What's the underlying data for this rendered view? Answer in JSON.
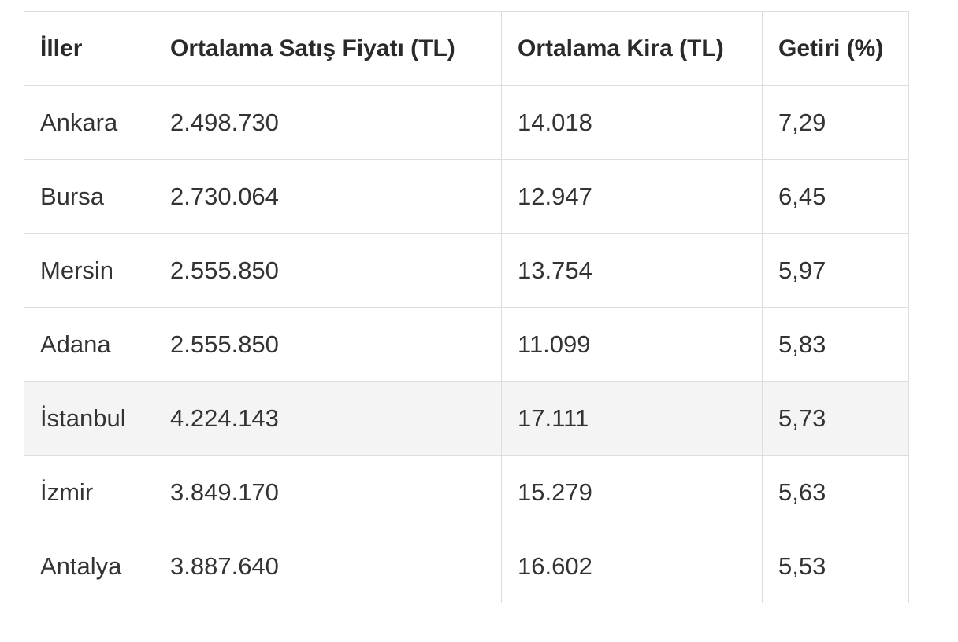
{
  "table": {
    "headers": [
      "İller",
      "Ortalama Satış Fiyatı (TL)",
      "Ortalama Kira (TL)",
      "Getiri (%)"
    ],
    "rows": [
      [
        "Ankara",
        "2.498.730",
        "14.018",
        "7,29"
      ],
      [
        "Bursa",
        "2.730.064",
        "12.947",
        "6,45"
      ],
      [
        "Mersin",
        "2.555.850",
        "13.754",
        "5,97"
      ],
      [
        "Adana",
        "2.555.850",
        "11.099",
        "5,83"
      ],
      [
        "İstanbul",
        "4.224.143",
        "17.111",
        "5,73"
      ],
      [
        "İzmir",
        "3.849.170",
        "15.279",
        "5,63"
      ],
      [
        "Antalya",
        "3.887.640",
        "16.602",
        "5,53"
      ]
    ],
    "highlighted_row_index": 4,
    "colors": {
      "border": "#dddddd",
      "highlight_background": "#f4f4f4",
      "text": "#333333"
    }
  }
}
